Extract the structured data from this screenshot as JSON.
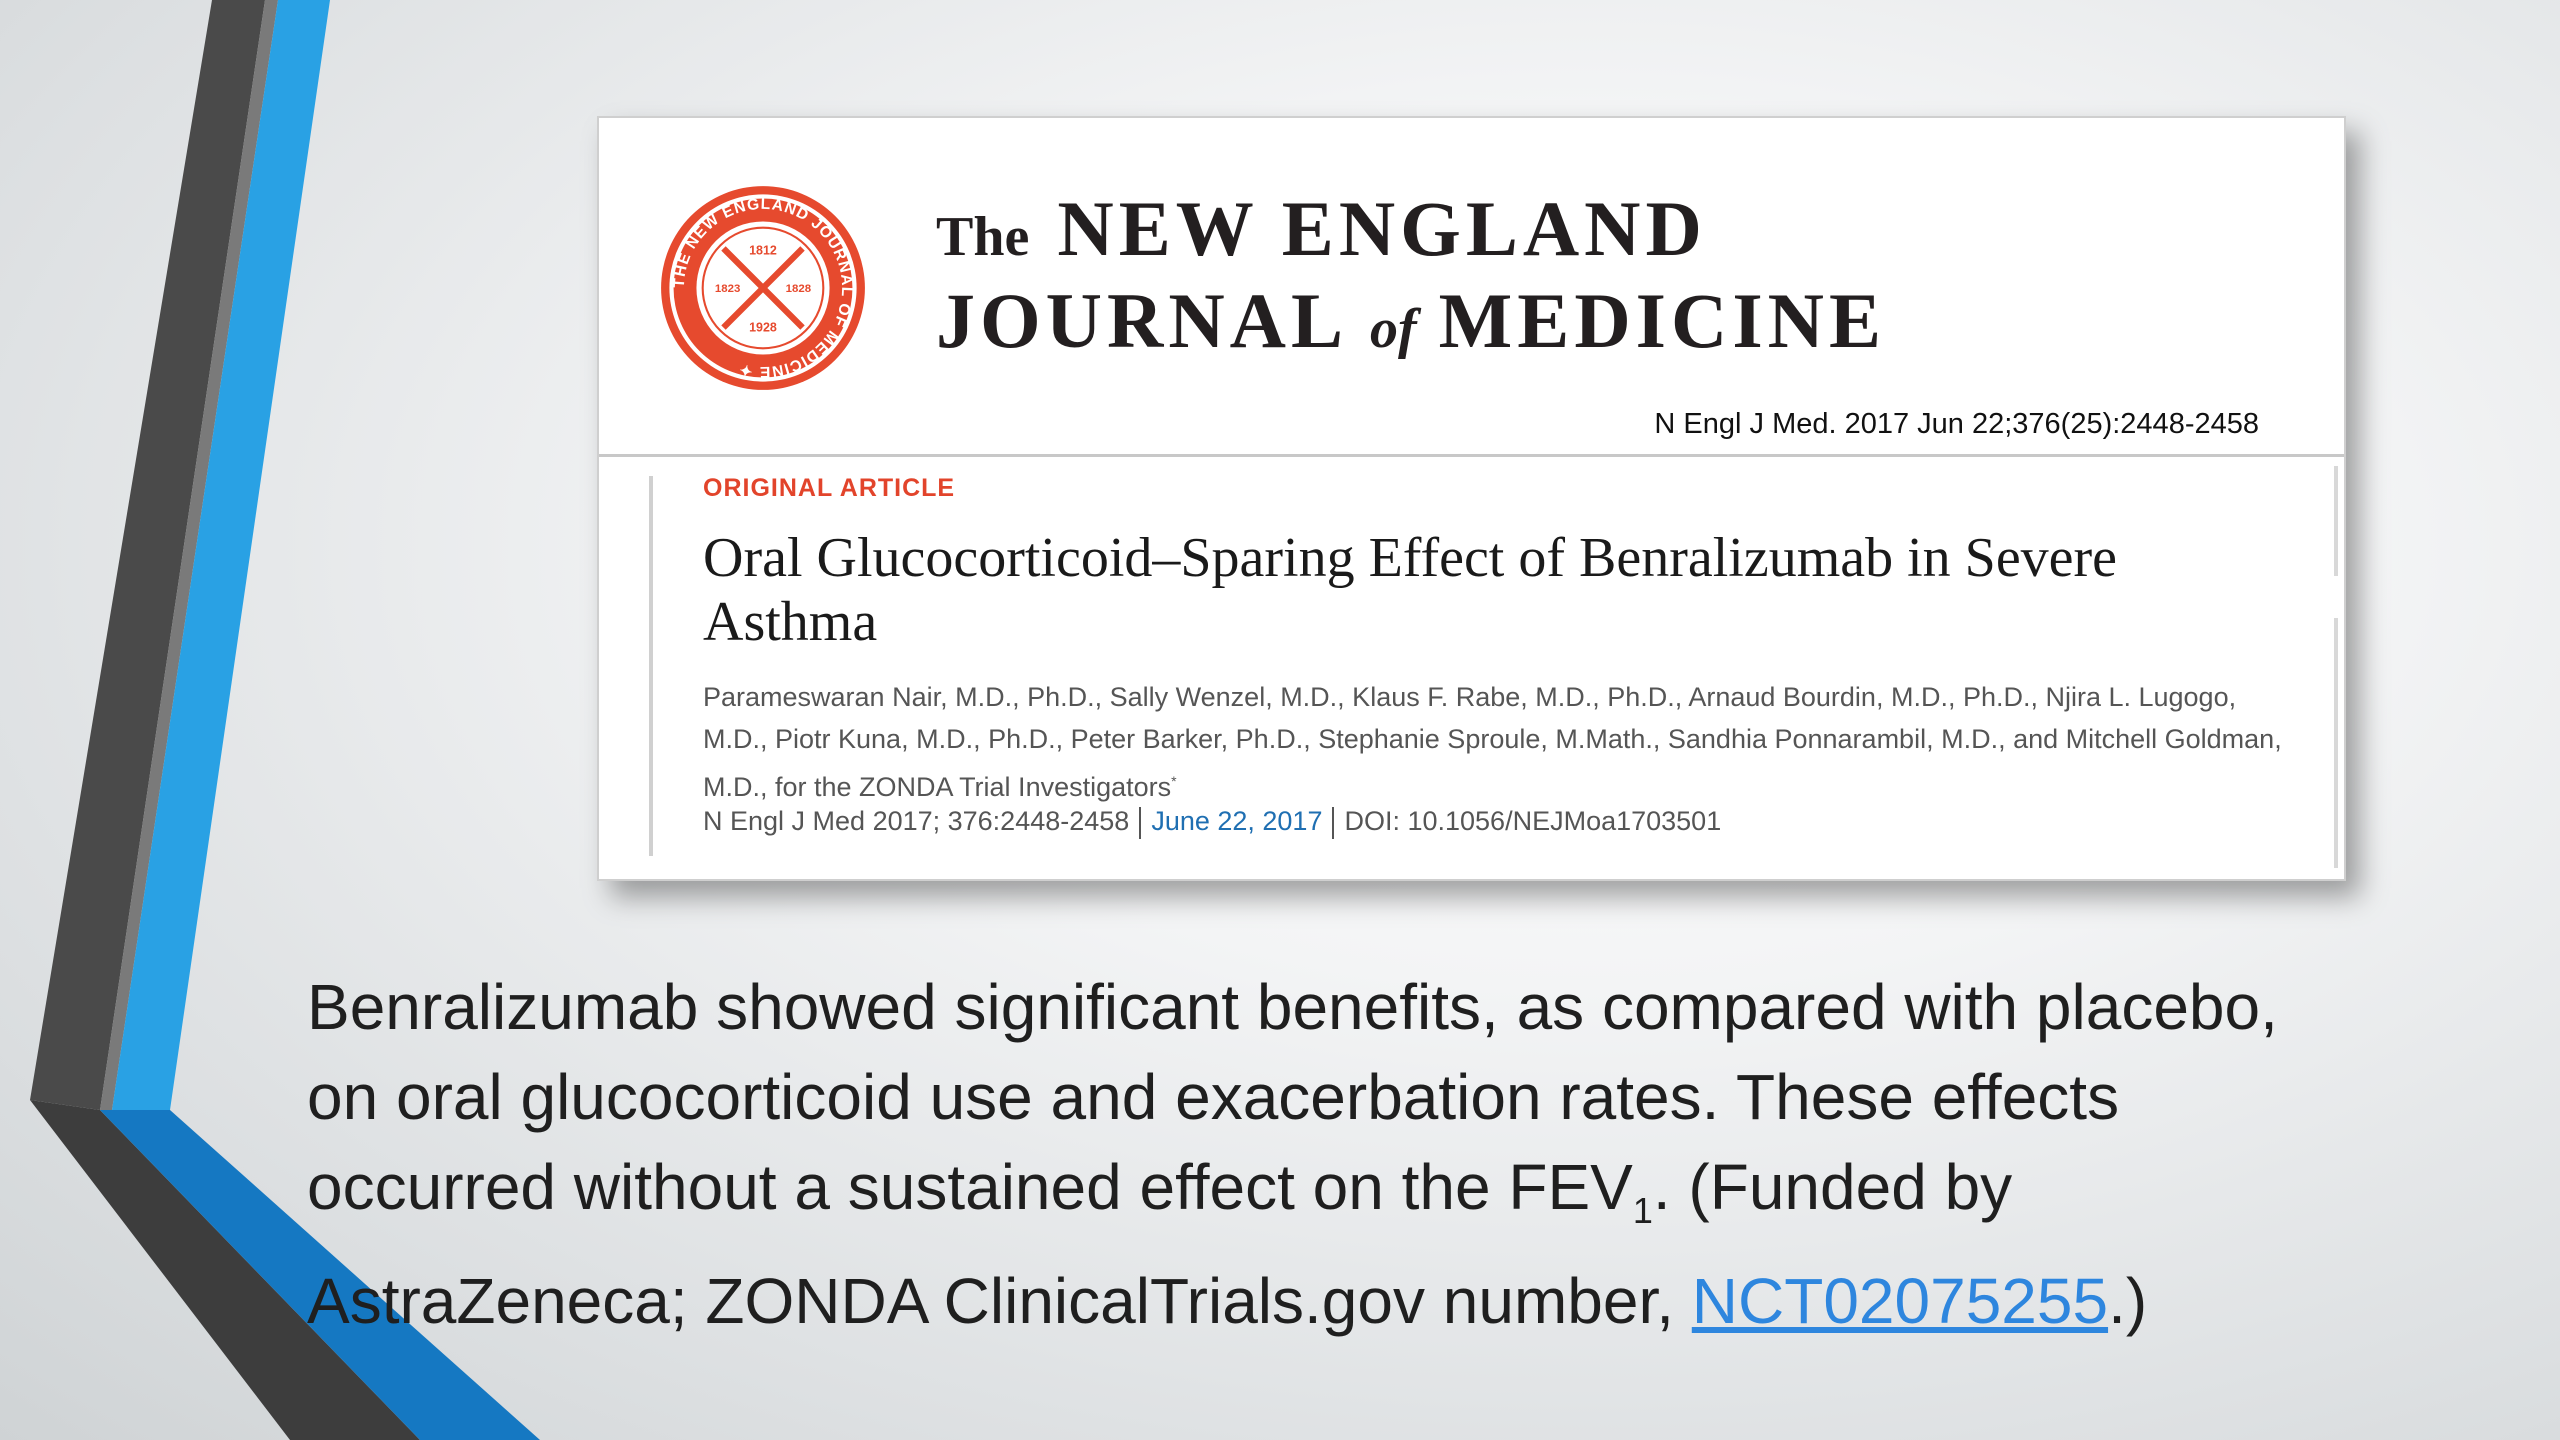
{
  "journal": {
    "masthead_the": "The",
    "masthead_line1": "NEW ENGLAND",
    "masthead_journal": "JOURNAL",
    "masthead_of": "of",
    "masthead_medicine": "MEDICINE",
    "seal_text": "THE NEW ENGLAND JOURNAL OF MEDICINE 1812 1823 1828 1928",
    "citation_top": "N Engl J Med. 2017 Jun 22;376(25):2448-2458",
    "colors": {
      "seal": "#e64a2e",
      "article_type": "#e2442b",
      "date_link": "#1f6fb2"
    }
  },
  "article": {
    "type": "ORIGINAL ARTICLE",
    "title": "Oral Glucocorticoid–Sparing Effect of Benralizumab in Severe Asthma",
    "authors": "Parameswaran Nair, M.D., Ph.D., Sally Wenzel, M.D., Klaus F. Rabe, M.D., Ph.D., Arnaud Bourdin, M.D., Ph.D., Njira L. Lugogo, M.D., Piotr Kuna, M.D., Ph.D., Peter Barker, Ph.D., Stephanie Sproule, M.Math., Sandhia Ponnarambil, M.D., and Mitchell Goldman, M.D., for the ZONDA Trial Investigators",
    "authors_mark": "*",
    "citation": "N Engl J Med 2017; 376:2448-2458",
    "date": "June 22, 2017",
    "doi": "DOI: 10.1056/NEJMoa1703501"
  },
  "summary": {
    "line1": "Benralizumab showed significant benefits, as compared with placebo,",
    "line2": "on oral glucocorticoid use and exacerbation rates. These effects",
    "line3_pre": "occurred without a sustained effect on the FEV",
    "line3_sub": "1",
    "line3_post": ". (Funded by",
    "line4_pre": "AstraZeneca; ZONDA ClinicalTrials.gov number, ",
    "line4_link": "NCT02075255",
    "line4_post": ".)",
    "link_color": "#2e86de"
  },
  "decoration": {
    "colors": {
      "dark_gray": "#3d3d3d",
      "gray": "#5a5a5a",
      "blue": "#29a1e4",
      "deep_blue": "#1578c2"
    }
  }
}
